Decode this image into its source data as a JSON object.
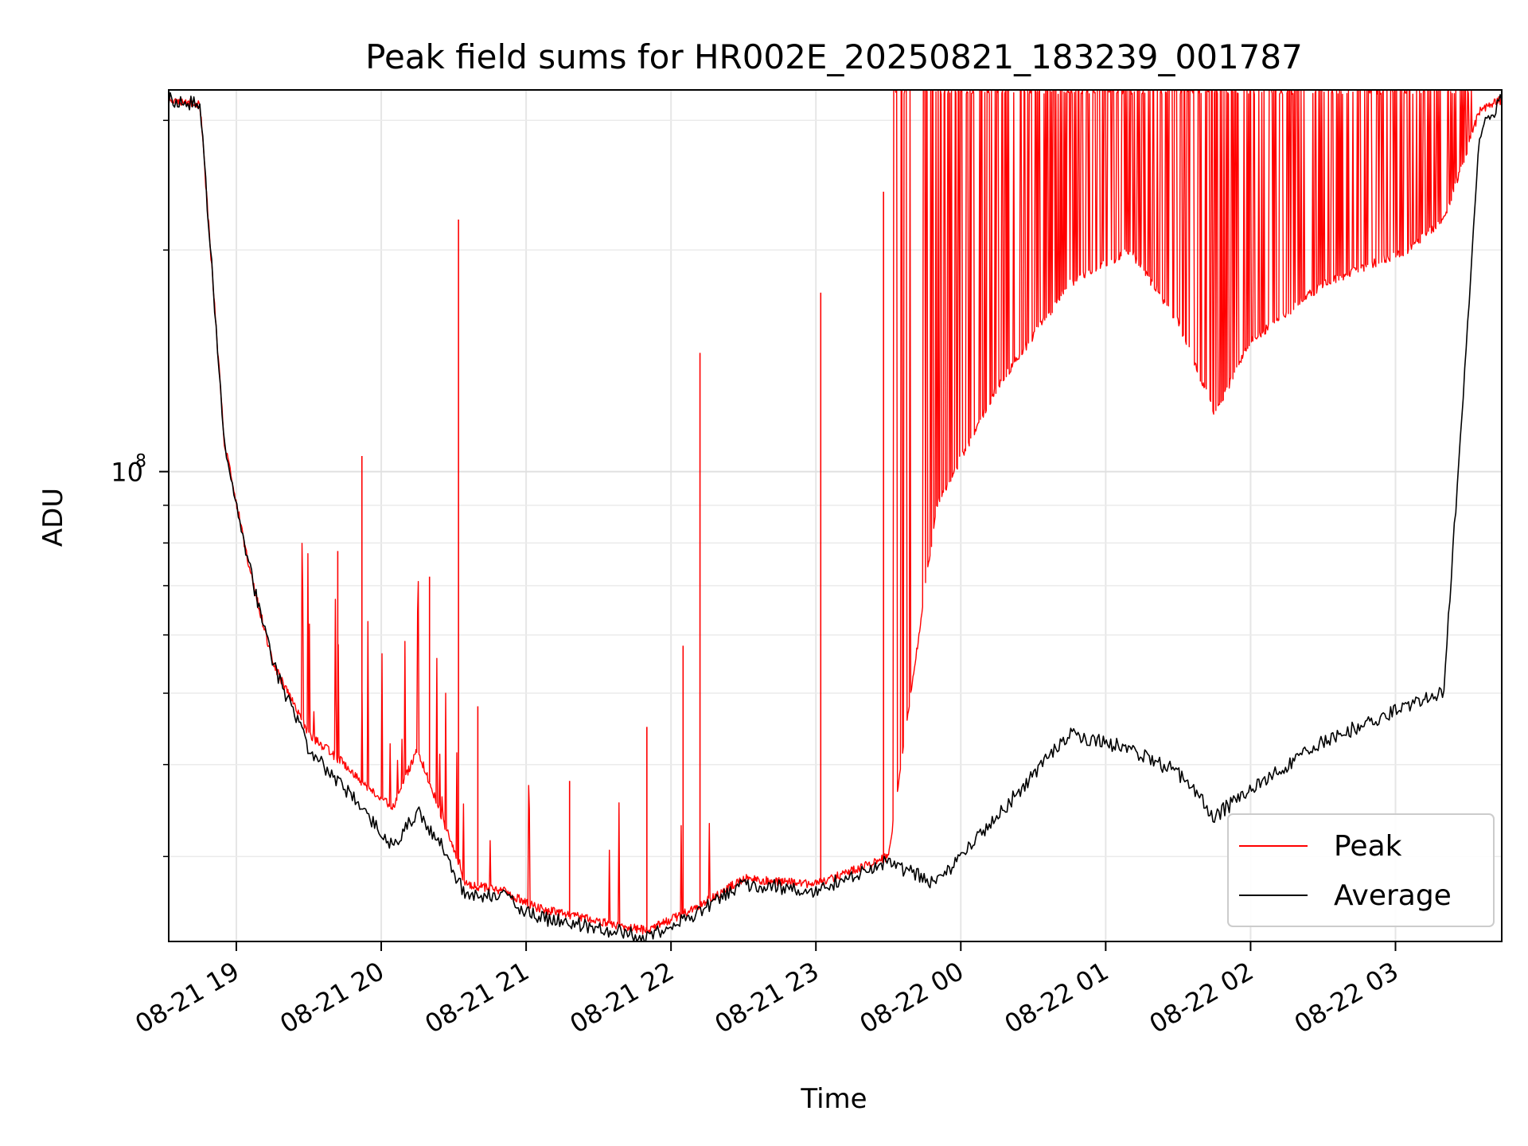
{
  "chart_data": {
    "type": "line",
    "title": "Peak field sums for HR002E_20250821_183239_001787",
    "xlabel": "Time",
    "ylabel": "ADU",
    "yscale": "log",
    "grid": true,
    "legend_position": "lower-right",
    "x_range": [
      "2025-08-21 18:32",
      "2025-08-22 03:44"
    ],
    "ylim": [
      23000000,
      330000000
    ],
    "x_tick_labels": [
      "08-21 19",
      "08-21 20",
      "08-21 21",
      "08-21 22",
      "08-21 23",
      "08-22 00",
      "08-22 01",
      "08-22 02",
      "08-22 03"
    ],
    "y_tick_labels": [
      {
        "base": "10",
        "exponent": "8"
      }
    ],
    "series": [
      {
        "name": "Peak",
        "color": "#ff0000",
        "x": [
          "2025-08-21 18:32",
          "2025-08-21 18:45",
          "2025-08-21 18:55",
          "2025-08-21 19:05",
          "2025-08-21 19:15",
          "2025-08-21 19:30",
          "2025-08-21 19:45",
          "2025-08-21 19:55",
          "2025-08-21 20:05",
          "2025-08-21 20:15",
          "2025-08-21 20:25",
          "2025-08-21 20:35",
          "2025-08-21 20:50",
          "2025-08-21 21:05",
          "2025-08-21 21:30",
          "2025-08-21 21:50",
          "2025-08-21 22:10",
          "2025-08-21 22:30",
          "2025-08-21 23:00",
          "2025-08-21 23:30",
          "2025-08-21 23:50",
          "2025-08-22 00:15",
          "2025-08-22 00:45",
          "2025-08-22 01:10",
          "2025-08-22 01:30",
          "2025-08-22 01:45",
          "2025-08-22 02:00",
          "2025-08-22 02:30",
          "2025-08-22 03:05",
          "2025-08-22 03:20",
          "2025-08-22 03:35",
          "2025-08-22 03:44"
        ],
        "y": [
          320000000,
          315000000,
          110000000,
          75000000,
          55000000,
          44000000,
          40000000,
          37000000,
          35000000,
          42000000,
          34000000,
          27500000,
          27000000,
          25500000,
          24500000,
          23800000,
          25500000,
          28000000,
          27500000,
          30000000,
          90000000,
          130000000,
          180000000,
          200000000,
          160000000,
          120000000,
          150000000,
          180000000,
          200000000,
          220000000,
          310000000,
          320000000
        ],
        "spikes": [
          {
            "x": "2025-08-21 19:42",
            "y": 78000000
          },
          {
            "x": "2025-08-21 19:52",
            "y": 105000000
          },
          {
            "x": "2025-08-21 20:20",
            "y": 72000000
          },
          {
            "x": "2025-08-21 20:32",
            "y": 220000000
          },
          {
            "x": "2025-08-21 20:40",
            "y": 48000000
          },
          {
            "x": "2025-08-21 21:18",
            "y": 38000000
          },
          {
            "x": "2025-08-21 21:50",
            "y": 45000000
          },
          {
            "x": "2025-08-21 22:12",
            "y": 145000000
          },
          {
            "x": "2025-08-21 22:05",
            "y": 58000000
          },
          {
            "x": "2025-08-21 23:02",
            "y": 175000000
          },
          {
            "x": "2025-08-21 23:28",
            "y": 240000000
          }
        ]
      },
      {
        "name": "Average",
        "color": "#000000",
        "x": [
          "2025-08-21 18:32",
          "2025-08-21 18:45",
          "2025-08-21 18:55",
          "2025-08-21 19:05",
          "2025-08-21 19:15",
          "2025-08-21 19:30",
          "2025-08-21 19:45",
          "2025-08-21 19:55",
          "2025-08-21 20:05",
          "2025-08-21 20:15",
          "2025-08-21 20:25",
          "2025-08-21 20:35",
          "2025-08-21 20:50",
          "2025-08-21 21:05",
          "2025-08-21 21:30",
          "2025-08-21 21:50",
          "2025-08-21 22:10",
          "2025-08-21 22:30",
          "2025-08-21 23:00",
          "2025-08-21 23:30",
          "2025-08-21 23:50",
          "2025-08-22 00:15",
          "2025-08-22 00:45",
          "2025-08-22 01:10",
          "2025-08-22 01:30",
          "2025-08-22 01:45",
          "2025-08-22 02:00",
          "2025-08-22 02:30",
          "2025-08-22 03:05",
          "2025-08-22 03:20",
          "2025-08-22 03:35",
          "2025-08-22 03:44"
        ],
        "y": [
          320000000,
          315000000,
          110000000,
          75000000,
          55000000,
          42000000,
          37000000,
          34000000,
          31000000,
          34500000,
          31000000,
          26500000,
          26500000,
          24800000,
          24000000,
          23300000,
          25000000,
          27500000,
          27000000,
          29500000,
          27500000,
          34000000,
          44000000,
          42000000,
          39000000,
          34000000,
          37000000,
          43000000,
          48000000,
          50000000,
          290000000,
          320000000
        ]
      }
    ]
  }
}
